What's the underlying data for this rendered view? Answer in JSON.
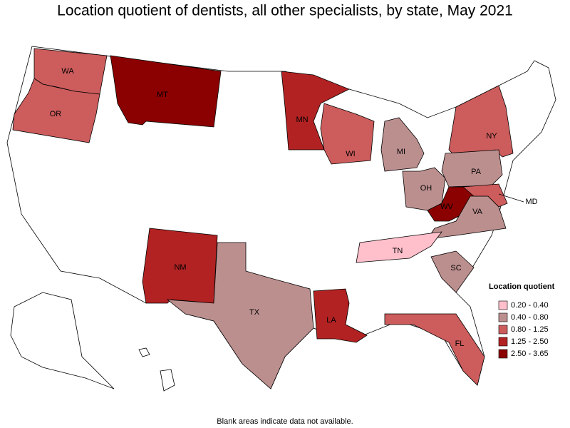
{
  "title": "Location quotient of dentists, all other specialists, by state, May 2021",
  "legend": {
    "title": "Location quotient",
    "items": [
      {
        "label": "0.20 - 0.40",
        "color": "#ffc0cb"
      },
      {
        "label": "0.40 - 0.80",
        "color": "#bc8f8f"
      },
      {
        "label": "0.80 - 1.25",
        "color": "#cd5c5c"
      },
      {
        "label": "1.25 - 2.50",
        "color": "#b22222"
      },
      {
        "label": "2.50 - 3.65",
        "color": "#8b0000"
      }
    ]
  },
  "states": [
    {
      "label": "WA",
      "color": "#cd5c5c"
    },
    {
      "label": "OR",
      "color": "#cd5c5c"
    },
    {
      "label": "MT",
      "color": "#8b0000"
    },
    {
      "label": "MN",
      "color": "#b22222"
    },
    {
      "label": "WI",
      "color": "#cd5c5c"
    },
    {
      "label": "MI",
      "color": "#bc8f8f"
    },
    {
      "label": "NY",
      "color": "#cd5c5c"
    },
    {
      "label": "PA",
      "color": "#bc8f8f"
    },
    {
      "label": "OH",
      "color": "#bc8f8f"
    },
    {
      "label": "WV",
      "color": "#8b0000"
    },
    {
      "label": "VA",
      "color": "#bc8f8f"
    },
    {
      "label": "MD",
      "color": "#cd5c5c"
    },
    {
      "label": "TN",
      "color": "#ffc0cb"
    },
    {
      "label": "SC",
      "color": "#bc8f8f"
    },
    {
      "label": "NM",
      "color": "#b22222"
    },
    {
      "label": "TX",
      "color": "#bc8f8f"
    },
    {
      "label": "LA",
      "color": "#b22222"
    },
    {
      "label": "FL",
      "color": "#cd5c5c"
    }
  ],
  "footnote": "Blank areas indicate data not available."
}
